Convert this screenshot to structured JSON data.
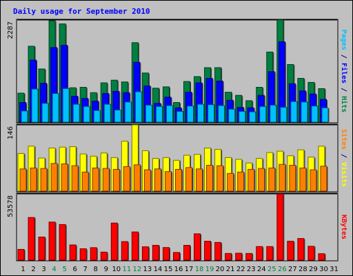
{
  "chart_data": {
    "type": "bar",
    "title": "Daily usage for September 2010",
    "categories": [
      "1",
      "2",
      "3",
      "4",
      "5",
      "6",
      "7",
      "8",
      "9",
      "10",
      "11",
      "12",
      "13",
      "14",
      "15",
      "16",
      "17",
      "18",
      "19",
      "20",
      "21",
      "22",
      "23",
      "24",
      "25",
      "26",
      "27",
      "28",
      "29",
      "30",
      "31"
    ],
    "weekend_days": [
      4,
      5,
      11,
      12,
      18,
      19,
      25,
      26
    ],
    "panels": [
      {
        "name": "hits-files-pages",
        "max_label": "2287",
        "ymax": 2287,
        "label_parts": [
          {
            "text": "Pages",
            "color": "#00c0ff"
          },
          {
            "text": " / ",
            "color": "#000080"
          },
          {
            "text": "Files",
            "color": "#0000ff"
          },
          {
            "text": " / ",
            "color": "#000080"
          },
          {
            "text": "Hits",
            "color": "#008040"
          }
        ],
        "series": [
          {
            "name": "Hits",
            "color": "#008040",
            "values": [
              650,
              1700,
              1190,
              2270,
              2200,
              770,
              780,
              660,
              880,
              940,
              900,
              1780,
              1100,
              760,
              790,
              440,
              910,
              1020,
              1220,
              1220,
              670,
              600,
              480,
              780,
              1570,
              2290,
              1290,
              980,
              890,
              750,
              0
            ]
          },
          {
            "name": "Files",
            "color": "#0000ff",
            "values": [
              440,
              1390,
              870,
              1670,
              1720,
              580,
              530,
              470,
              640,
              690,
              660,
              1340,
              810,
              420,
              560,
              320,
              670,
              880,
              980,
              920,
              490,
              330,
              320,
              600,
              1130,
              1800,
              860,
              700,
              630,
              510,
              0
            ]
          },
          {
            "name": "Pages",
            "color": "#00c0ff",
            "values": [
              250,
              740,
              420,
              640,
              750,
              400,
              350,
              260,
              400,
              270,
              450,
              680,
              380,
              350,
              370,
              240,
              360,
              400,
              390,
              370,
              290,
              240,
              230,
              350,
              380,
              330,
              460,
              450,
              360,
              320,
              0
            ]
          }
        ]
      },
      {
        "name": "visits-sites",
        "max_label": "146",
        "ymax": 146,
        "label_parts": [
          {
            "text": "Sites",
            "color": "#ff8000"
          },
          {
            "text": " / ",
            "color": "#000080"
          },
          {
            "text": "Visits",
            "color": "#ffff00"
          }
        ],
        "series": [
          {
            "name": "Visits",
            "color": "#ffff00",
            "values": [
              83,
              99,
              73,
              95,
              97,
              98,
              82,
              77,
              84,
              74,
              110,
              146,
              89,
              72,
              74,
              68,
              79,
              81,
              95,
              92,
              74,
              70,
              62,
              72,
              85,
              88,
              78,
              91,
              75,
              99,
              0
            ]
          },
          {
            "name": "Sites",
            "color": "#ff8000",
            "values": [
              49,
              51,
              50,
              61,
              60,
              56,
              42,
              51,
              50,
              48,
              54,
              58,
              47,
              49,
              43,
              48,
              52,
              49,
              57,
              56,
              39,
              42,
              48,
              50,
              51,
              59,
              57,
              51,
              47,
              55,
              0
            ]
          }
        ]
      },
      {
        "name": "kbytes",
        "max_label": "53578",
        "ymax": 53578,
        "label_parts": [
          {
            "text": "KBytes",
            "color": "#ff0000"
          }
        ],
        "series": [
          {
            "name": "KBytes",
            "color": "#ff0000",
            "values": [
              8700,
              34500,
              18700,
              30800,
              28800,
              12300,
              9200,
              10100,
              6500,
              30000,
              15000,
              22800,
              10800,
              12000,
              10200,
              6200,
              12000,
              21300,
              15300,
              14300,
              5400,
              5600,
              5400,
              11000,
              11000,
              53578,
              15300,
              17500,
              11200,
              5200,
              0
            ]
          }
        ]
      }
    ]
  }
}
